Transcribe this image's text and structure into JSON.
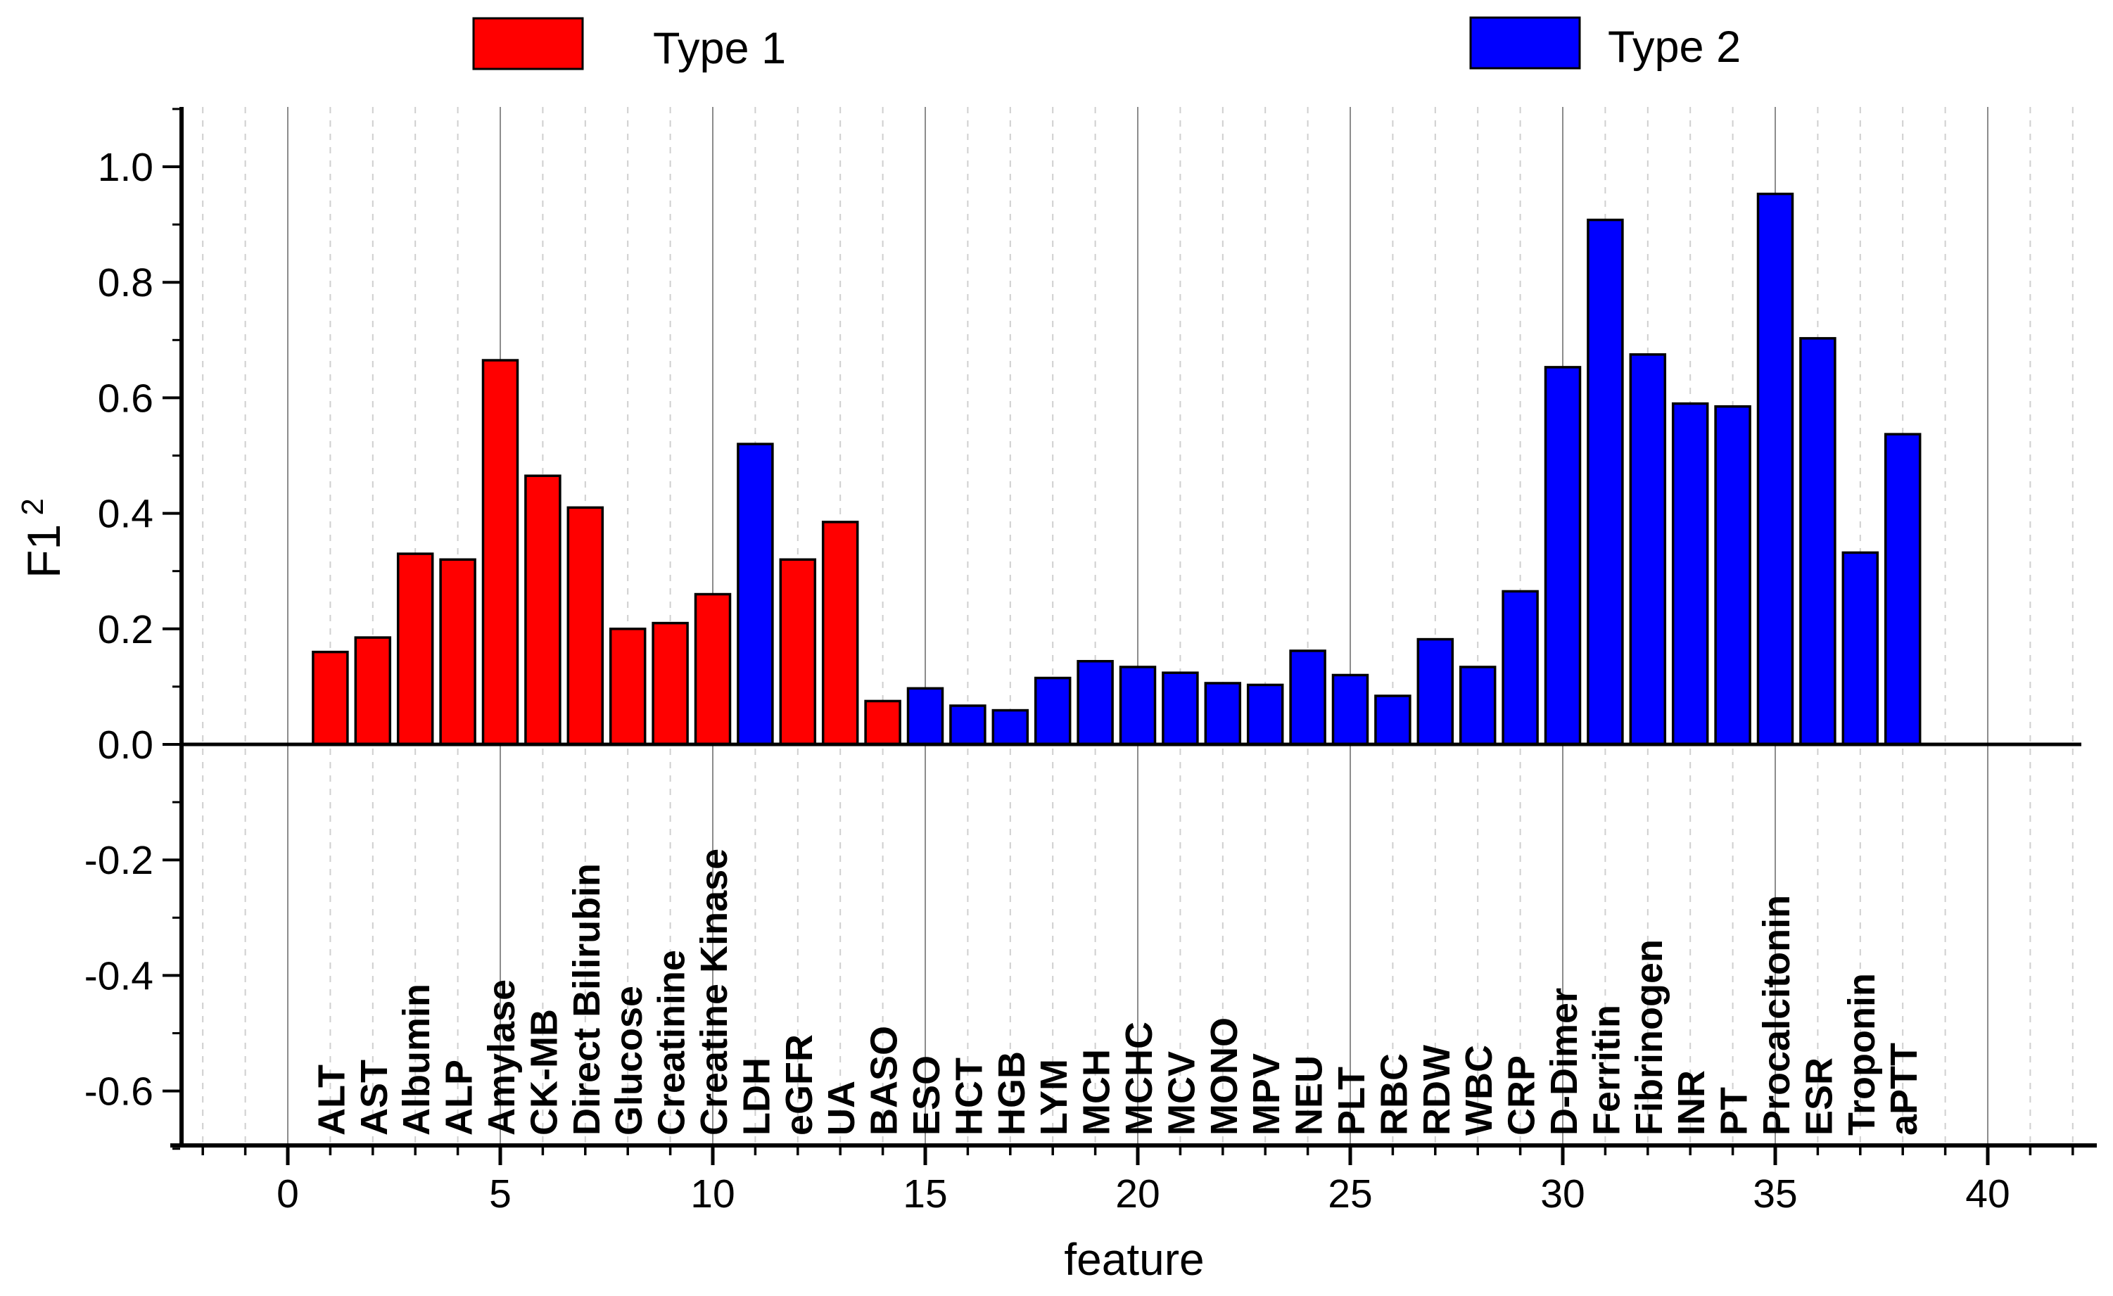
{
  "chart_data": {
    "type": "bar",
    "title": "",
    "xlabel": "feature",
    "ylabel_base": "F1",
    "ylabel_sup": "2",
    "legend_position": "top",
    "background_color": "#ffffff",
    "series": [
      {
        "name": "Type 1",
        "color": "#ff0000"
      },
      {
        "name": "Type 2",
        "color": "#0000ff"
      }
    ],
    "x_axis": {
      "range": [
        -2.5,
        42.6
      ],
      "major_tick_values": [
        0,
        5,
        10,
        15,
        20,
        25,
        30,
        35,
        40
      ],
      "major_tick_labels": [
        "0",
        "5",
        "10",
        "15",
        "20",
        "25",
        "30",
        "35",
        "40"
      ],
      "minor_tick_start": -2,
      "minor_tick_end": 42,
      "minor_tick_step": 1
    },
    "y_axis": {
      "range": [
        -0.7,
        1.1
      ],
      "major_tick_values": [
        -0.6,
        -0.4,
        -0.2,
        0.0,
        0.2,
        0.4,
        0.6,
        0.8,
        1.0
      ],
      "major_tick_labels": [
        "-0.6",
        "-0.4",
        "-0.2",
        "0.0",
        "0.2",
        "0.4",
        "0.6",
        "0.8",
        "1.0"
      ],
      "minor_tick_start": -0.7,
      "minor_tick_end": 1.1,
      "minor_tick_step": 0.1
    },
    "grid": {
      "vertical_solid_every": 5,
      "vertical_dashed_other_integers": true,
      "solid_color": "#8c8c8c",
      "dashed_color": "#cfcfcf"
    },
    "categories": [
      "ALT",
      "AST",
      "Albumin",
      "ALP",
      "Amylase",
      "CK-MB",
      "Direct Bilirubin",
      "Glucose",
      "Creatinine",
      "Creatine Kinase",
      "LDH",
      "eGFR",
      "UA",
      "BASO",
      "ESO",
      "HCT",
      "HGB",
      "LYM",
      "MCH",
      "MCHC",
      "MCV",
      "MONO",
      "MPV",
      "NEU",
      "PLT",
      "RBC",
      "RDW",
      "WBC",
      "CRP",
      "D-Dimer",
      "Ferritin",
      "Fibrinogen",
      "INR",
      "PT",
      "Procalcitonin",
      "ESR",
      "Troponin",
      "aPTT"
    ],
    "bars": [
      {
        "x": 1,
        "label": "ALT",
        "value": 0.16,
        "series": "Type 1"
      },
      {
        "x": 2,
        "label": "AST",
        "value": 0.185,
        "series": "Type 1"
      },
      {
        "x": 3,
        "label": "Albumin",
        "value": 0.33,
        "series": "Type 1"
      },
      {
        "x": 4,
        "label": "ALP",
        "value": 0.32,
        "series": "Type 1"
      },
      {
        "x": 5,
        "label": "Amylase",
        "value": 0.665,
        "series": "Type 1"
      },
      {
        "x": 6,
        "label": "CK-MB",
        "value": 0.465,
        "series": "Type 1"
      },
      {
        "x": 7,
        "label": "Direct Bilirubin",
        "value": 0.41,
        "series": "Type 1"
      },
      {
        "x": 8,
        "label": "Glucose",
        "value": 0.2,
        "series": "Type 1"
      },
      {
        "x": 9,
        "label": "Creatinine",
        "value": 0.21,
        "series": "Type 1"
      },
      {
        "x": 10,
        "label": "Creatine Kinase",
        "value": 0.26,
        "series": "Type 1"
      },
      {
        "x": 11,
        "label": "LDH",
        "value": 0.52,
        "series": "Type 2"
      },
      {
        "x": 12,
        "label": "eGFR",
        "value": 0.32,
        "series": "Type 1"
      },
      {
        "x": 13,
        "label": "UA",
        "value": 0.385,
        "series": "Type 1"
      },
      {
        "x": 14,
        "label": "BASO",
        "value": 0.075,
        "series": "Type 1"
      },
      {
        "x": 15,
        "label": "ESO",
        "value": 0.097,
        "series": "Type 2"
      },
      {
        "x": 16,
        "label": "HCT",
        "value": 0.067,
        "series": "Type 2"
      },
      {
        "x": 17,
        "label": "HGB",
        "value": 0.059,
        "series": "Type 2"
      },
      {
        "x": 18,
        "label": "LYM",
        "value": 0.115,
        "series": "Type 2"
      },
      {
        "x": 19,
        "label": "MCH",
        "value": 0.144,
        "series": "Type 2"
      },
      {
        "x": 20,
        "label": "MCHC",
        "value": 0.134,
        "series": "Type 2"
      },
      {
        "x": 21,
        "label": "MCV",
        "value": 0.124,
        "series": "Type 2"
      },
      {
        "x": 22,
        "label": "MONO",
        "value": 0.106,
        "series": "Type 2"
      },
      {
        "x": 23,
        "label": "MPV",
        "value": 0.103,
        "series": "Type 2"
      },
      {
        "x": 24,
        "label": "NEU",
        "value": 0.162,
        "series": "Type 2"
      },
      {
        "x": 25,
        "label": "PLT",
        "value": 0.12,
        "series": "Type 2"
      },
      {
        "x": 26,
        "label": "RBC",
        "value": 0.084,
        "series": "Type 2"
      },
      {
        "x": 27,
        "label": "RDW",
        "value": 0.182,
        "series": "Type 2"
      },
      {
        "x": 28,
        "label": "WBC",
        "value": 0.134,
        "series": "Type 2"
      },
      {
        "x": 29,
        "label": "CRP",
        "value": 0.265,
        "series": "Type 2"
      },
      {
        "x": 30,
        "label": "D-Dimer",
        "value": 0.653,
        "series": "Type 2"
      },
      {
        "x": 31,
        "label": "Ferritin",
        "value": 0.908,
        "series": "Type 2"
      },
      {
        "x": 32,
        "label": "Fibrinogen",
        "value": 0.675,
        "series": "Type 2"
      },
      {
        "x": 33,
        "label": "INR",
        "value": 0.59,
        "series": "Type 2"
      },
      {
        "x": 34,
        "label": "PT",
        "value": 0.585,
        "series": "Type 2"
      },
      {
        "x": 35,
        "label": "Procalcitonin",
        "value": 0.953,
        "series": "Type 2"
      },
      {
        "x": 36,
        "label": "ESR",
        "value": 0.703,
        "series": "Type 2"
      },
      {
        "x": 37,
        "label": "Troponin",
        "value": 0.332,
        "series": "Type 2"
      },
      {
        "x": 38,
        "label": "aPTT",
        "value": 0.537,
        "series": "Type 2"
      }
    ]
  }
}
